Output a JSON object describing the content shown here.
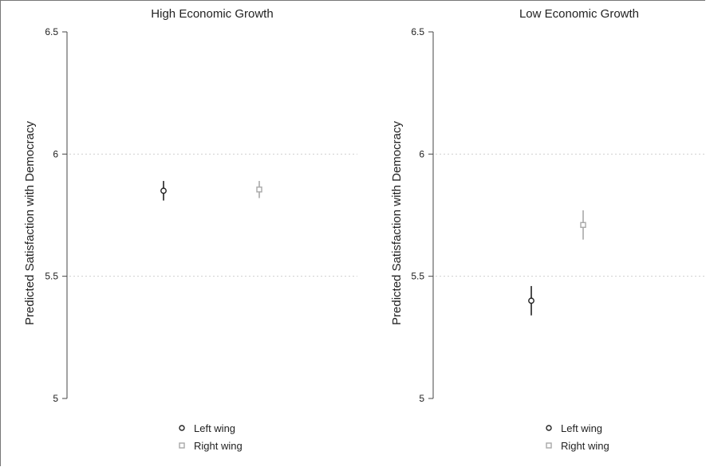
{
  "chart_data": [
    {
      "type": "scatter",
      "title": "High Economic Growth",
      "ylabel": "Predicted Satisfaction with Democracy",
      "ylim": [
        5,
        6.5
      ],
      "yticks": [
        5,
        5.5,
        6,
        6.5
      ],
      "ytick_labels": [
        "5",
        "5.5",
        "6",
        "6.5"
      ],
      "grid_y_values": [
        5.5,
        6
      ],
      "series": [
        {
          "name": "Left wing",
          "marker": "circle",
          "color": "#222222",
          "y": 5.85,
          "ci": [
            5.81,
            5.89
          ]
        },
        {
          "name": "Right wing",
          "marker": "square",
          "color": "#a8a8a8",
          "y": 5.855,
          "ci": [
            5.82,
            5.89
          ]
        }
      ]
    },
    {
      "type": "scatter",
      "title": "Low Economic Growth",
      "ylabel": "Predicted Satisfaction with Democracy",
      "ylim": [
        5,
        6.5
      ],
      "yticks": [
        5,
        5.5,
        6,
        6.5
      ],
      "ytick_labels": [
        "5",
        "5.5",
        "6",
        "6.5"
      ],
      "grid_y_values": [
        5.5,
        6
      ],
      "series": [
        {
          "name": "Left wing",
          "marker": "circle",
          "color": "#222222",
          "y": 5.4,
          "ci": [
            5.34,
            5.46
          ]
        },
        {
          "name": "Right wing",
          "marker": "square",
          "color": "#a8a8a8",
          "y": 5.71,
          "ci": [
            5.65,
            5.77
          ]
        }
      ]
    }
  ],
  "legend": {
    "items": [
      {
        "label": "Left wing",
        "marker": "circle",
        "color": "#222222"
      },
      {
        "label": "Right wing",
        "marker": "square",
        "color": "#a8a8a8"
      }
    ]
  }
}
